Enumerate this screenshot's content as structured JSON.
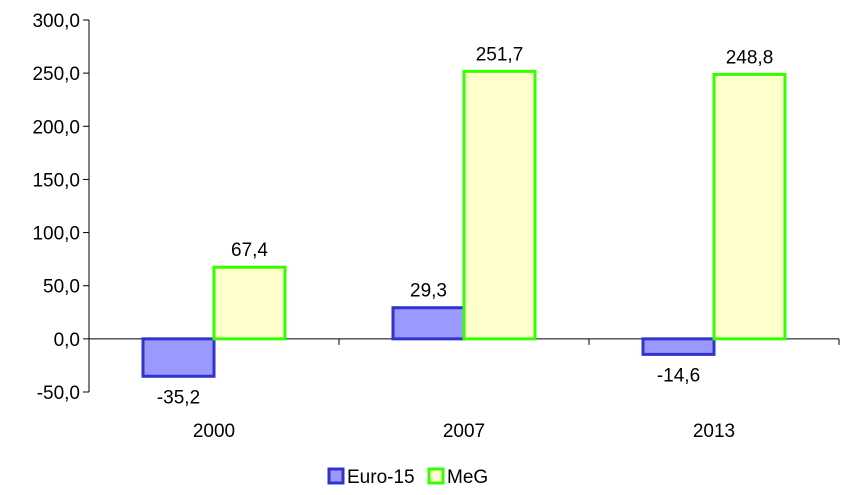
{
  "chart_data": {
    "type": "bar",
    "categories": [
      "2000",
      "2007",
      "2013"
    ],
    "series": [
      {
        "name": "Euro-15",
        "values": [
          -35.2,
          29.3,
          -14.6
        ],
        "labels": [
          "-35,2",
          "29,3",
          "-14,6"
        ],
        "fill": "#9999ff",
        "stroke": "#3333cc"
      },
      {
        "name": "MeG",
        "values": [
          67.4,
          251.7,
          248.8
        ],
        "labels": [
          "67,4",
          "251,7",
          "248,8"
        ],
        "fill": "#ffffcc",
        "stroke": "#33ff00"
      }
    ],
    "ylim": [
      -50,
      300
    ],
    "yticks": [
      300,
      250,
      200,
      150,
      100,
      50,
      0,
      -50
    ],
    "ytick_labels": [
      "300,0",
      "250,0",
      "200,0",
      "150,0",
      "100,0",
      "50,0",
      "0,0",
      "-50,0"
    ],
    "grid": false,
    "legend_position": "bottom-center"
  }
}
